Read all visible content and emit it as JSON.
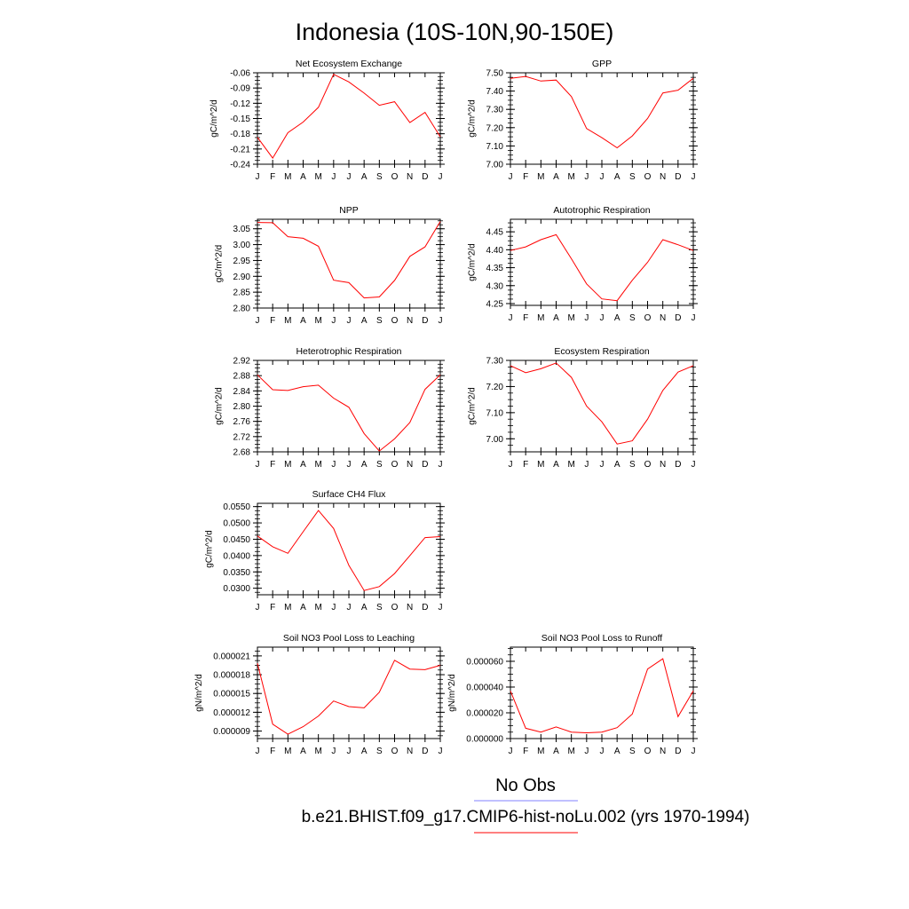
{
  "figure": {
    "title": "Indonesia (10S-10N,90-150E)",
    "series_color": "#ff0000",
    "obs_color": "#8080ff",
    "legend": {
      "obs_label": "No Obs",
      "case_label": "b.e21.BHIST.f09_g17.CMIP6-hist-noLu.002 (yrs 1970-1994)"
    }
  },
  "chart_data": [
    {
      "type": "line",
      "title": "Net Ecosystem Exchange",
      "ylabel": "gC/m^2/d",
      "x": [
        "J",
        "F",
        "M",
        "A",
        "M",
        "J",
        "J",
        "A",
        "S",
        "O",
        "N",
        "D",
        "J"
      ],
      "y": [
        -0.187,
        -0.228,
        -0.178,
        -0.157,
        -0.128,
        -0.063,
        -0.078,
        -0.1,
        -0.124,
        -0.117,
        -0.158,
        -0.138,
        -0.186
      ],
      "ylim": [
        -0.24,
        -0.06
      ],
      "yticks": [
        "-0.24",
        "-0.21",
        "-0.18",
        "-0.15",
        "-0.12",
        "-0.09",
        "-0.06"
      ],
      "grid": false
    },
    {
      "type": "line",
      "title": "GPP",
      "ylabel": "gC/m^2/d",
      "x": [
        "J",
        "F",
        "M",
        "A",
        "M",
        "J",
        "J",
        "A",
        "S",
        "O",
        "N",
        "D",
        "J"
      ],
      "y": [
        7.47,
        7.48,
        7.455,
        7.46,
        7.37,
        7.195,
        7.145,
        7.09,
        7.155,
        7.25,
        7.39,
        7.405,
        7.47
      ],
      "ylim": [
        7.0,
        7.5
      ],
      "yticks": [
        "7.00",
        "7.10",
        "7.20",
        "7.30",
        "7.40",
        "7.50"
      ],
      "grid": false
    },
    {
      "type": "line",
      "title": "NPP",
      "ylabel": "gC/m^2/d",
      "x": [
        "J",
        "F",
        "M",
        "A",
        "M",
        "J",
        "J",
        "A",
        "S",
        "O",
        "N",
        "D",
        "J"
      ],
      "y": [
        3.07,
        3.069,
        3.025,
        3.02,
        2.995,
        2.888,
        2.88,
        2.832,
        2.835,
        2.887,
        2.963,
        2.993,
        3.073
      ],
      "ylim": [
        2.8,
        3.08
      ],
      "yticks": [
        "2.80",
        "2.85",
        "2.90",
        "2.95",
        "3.00",
        "3.05"
      ],
      "grid": false
    },
    {
      "type": "line",
      "title": "Autotrophic Respiration",
      "ylabel": "gC/m^2/d",
      "x": [
        "J",
        "F",
        "M",
        "A",
        "M",
        "J",
        "J",
        "A",
        "S",
        "O",
        "N",
        "D",
        "J"
      ],
      "y": [
        4.398,
        4.408,
        4.428,
        4.442,
        4.375,
        4.305,
        4.263,
        4.258,
        4.315,
        4.365,
        4.428,
        4.414,
        4.398
      ],
      "ylim": [
        4.245,
        4.485
      ],
      "yticks": [
        "4.25",
        "4.30",
        "4.35",
        "4.40",
        "4.45"
      ],
      "grid": false
    },
    {
      "type": "line",
      "title": "Heterotrophic Respiration",
      "ylabel": "gC/m^2/d",
      "x": [
        "J",
        "F",
        "M",
        "A",
        "M",
        "J",
        "J",
        "A",
        "S",
        "O",
        "N",
        "D",
        "J"
      ],
      "y": [
        2.882,
        2.843,
        2.841,
        2.851,
        2.855,
        2.821,
        2.797,
        2.728,
        2.682,
        2.714,
        2.757,
        2.844,
        2.882
      ],
      "ylim": [
        2.68,
        2.92
      ],
      "yticks": [
        "2.68",
        "2.72",
        "2.76",
        "2.80",
        "2.84",
        "2.88",
        "2.92"
      ],
      "grid": false
    },
    {
      "type": "line",
      "title": "Ecosystem Respiration",
      "ylabel": "gC/m^2/d",
      "x": [
        "J",
        "F",
        "M",
        "A",
        "M",
        "J",
        "J",
        "A",
        "S",
        "O",
        "N",
        "D",
        "J"
      ],
      "y": [
        7.28,
        7.253,
        7.268,
        7.29,
        7.235,
        7.125,
        7.065,
        6.98,
        6.992,
        7.075,
        7.185,
        7.255,
        7.28
      ],
      "ylim": [
        6.95,
        7.3
      ],
      "yticks": [
        "7.00",
        "7.10",
        "7.20",
        "7.30"
      ],
      "grid": false
    },
    {
      "type": "line",
      "title": "Surface CH4 Flux",
      "ylabel": "gC/m^2/d",
      "x": [
        "J",
        "F",
        "M",
        "A",
        "M",
        "J",
        "J",
        "A",
        "S",
        "O",
        "N",
        "D",
        "J"
      ],
      "y": [
        0.046,
        0.0427,
        0.0407,
        0.0473,
        0.0538,
        0.0483,
        0.037,
        0.0293,
        0.0305,
        0.0345,
        0.04,
        0.0455,
        0.0458
      ],
      "ylim": [
        0.028,
        0.056
      ],
      "yticks": [
        "0.0300",
        "0.0350",
        "0.0400",
        "0.0450",
        "0.0500",
        "0.0550"
      ],
      "grid": false
    },
    {
      "type": "line",
      "title": "Soil NO3 Pool Loss to Leaching",
      "ylabel": "gN/m^2/d",
      "x": [
        "J",
        "F",
        "M",
        "A",
        "M",
        "J",
        "J",
        "A",
        "S",
        "O",
        "N",
        "D",
        "J"
      ],
      "y": [
        1.98e-05,
        1.01e-05,
        8.5e-06,
        9.7e-06,
        1.14e-05,
        1.38e-05,
        1.29e-05,
        1.27e-05,
        1.52e-05,
        2.03e-05,
        1.89e-05,
        1.88e-05,
        1.95e-05
      ],
      "ylim": [
        7.8e-06,
        2.24e-05
      ],
      "yticks": [
        "0.000009",
        "0.000012",
        "0.000015",
        "0.000018",
        "0.000021"
      ],
      "grid": false
    },
    {
      "type": "line",
      "title": "Soil NO3 Pool Loss to Runoff",
      "ylabel": "gN/m^2/d",
      "x": [
        "J",
        "F",
        "M",
        "A",
        "M",
        "J",
        "J",
        "A",
        "S",
        "O",
        "N",
        "D",
        "J"
      ],
      "y": [
        3.7e-05,
        8e-06,
        5e-06,
        9e-06,
        5e-06,
        4.5e-06,
        5e-06,
        8.5e-06,
        1.9e-05,
        5.4e-05,
        6.2e-05,
        1.7e-05,
        3.7e-05
      ],
      "ylim": [
        0.0,
        7.1e-05
      ],
      "yticks": [
        "0.000000",
        "0.000020",
        "0.000040",
        "0.000060"
      ],
      "grid": false
    }
  ]
}
